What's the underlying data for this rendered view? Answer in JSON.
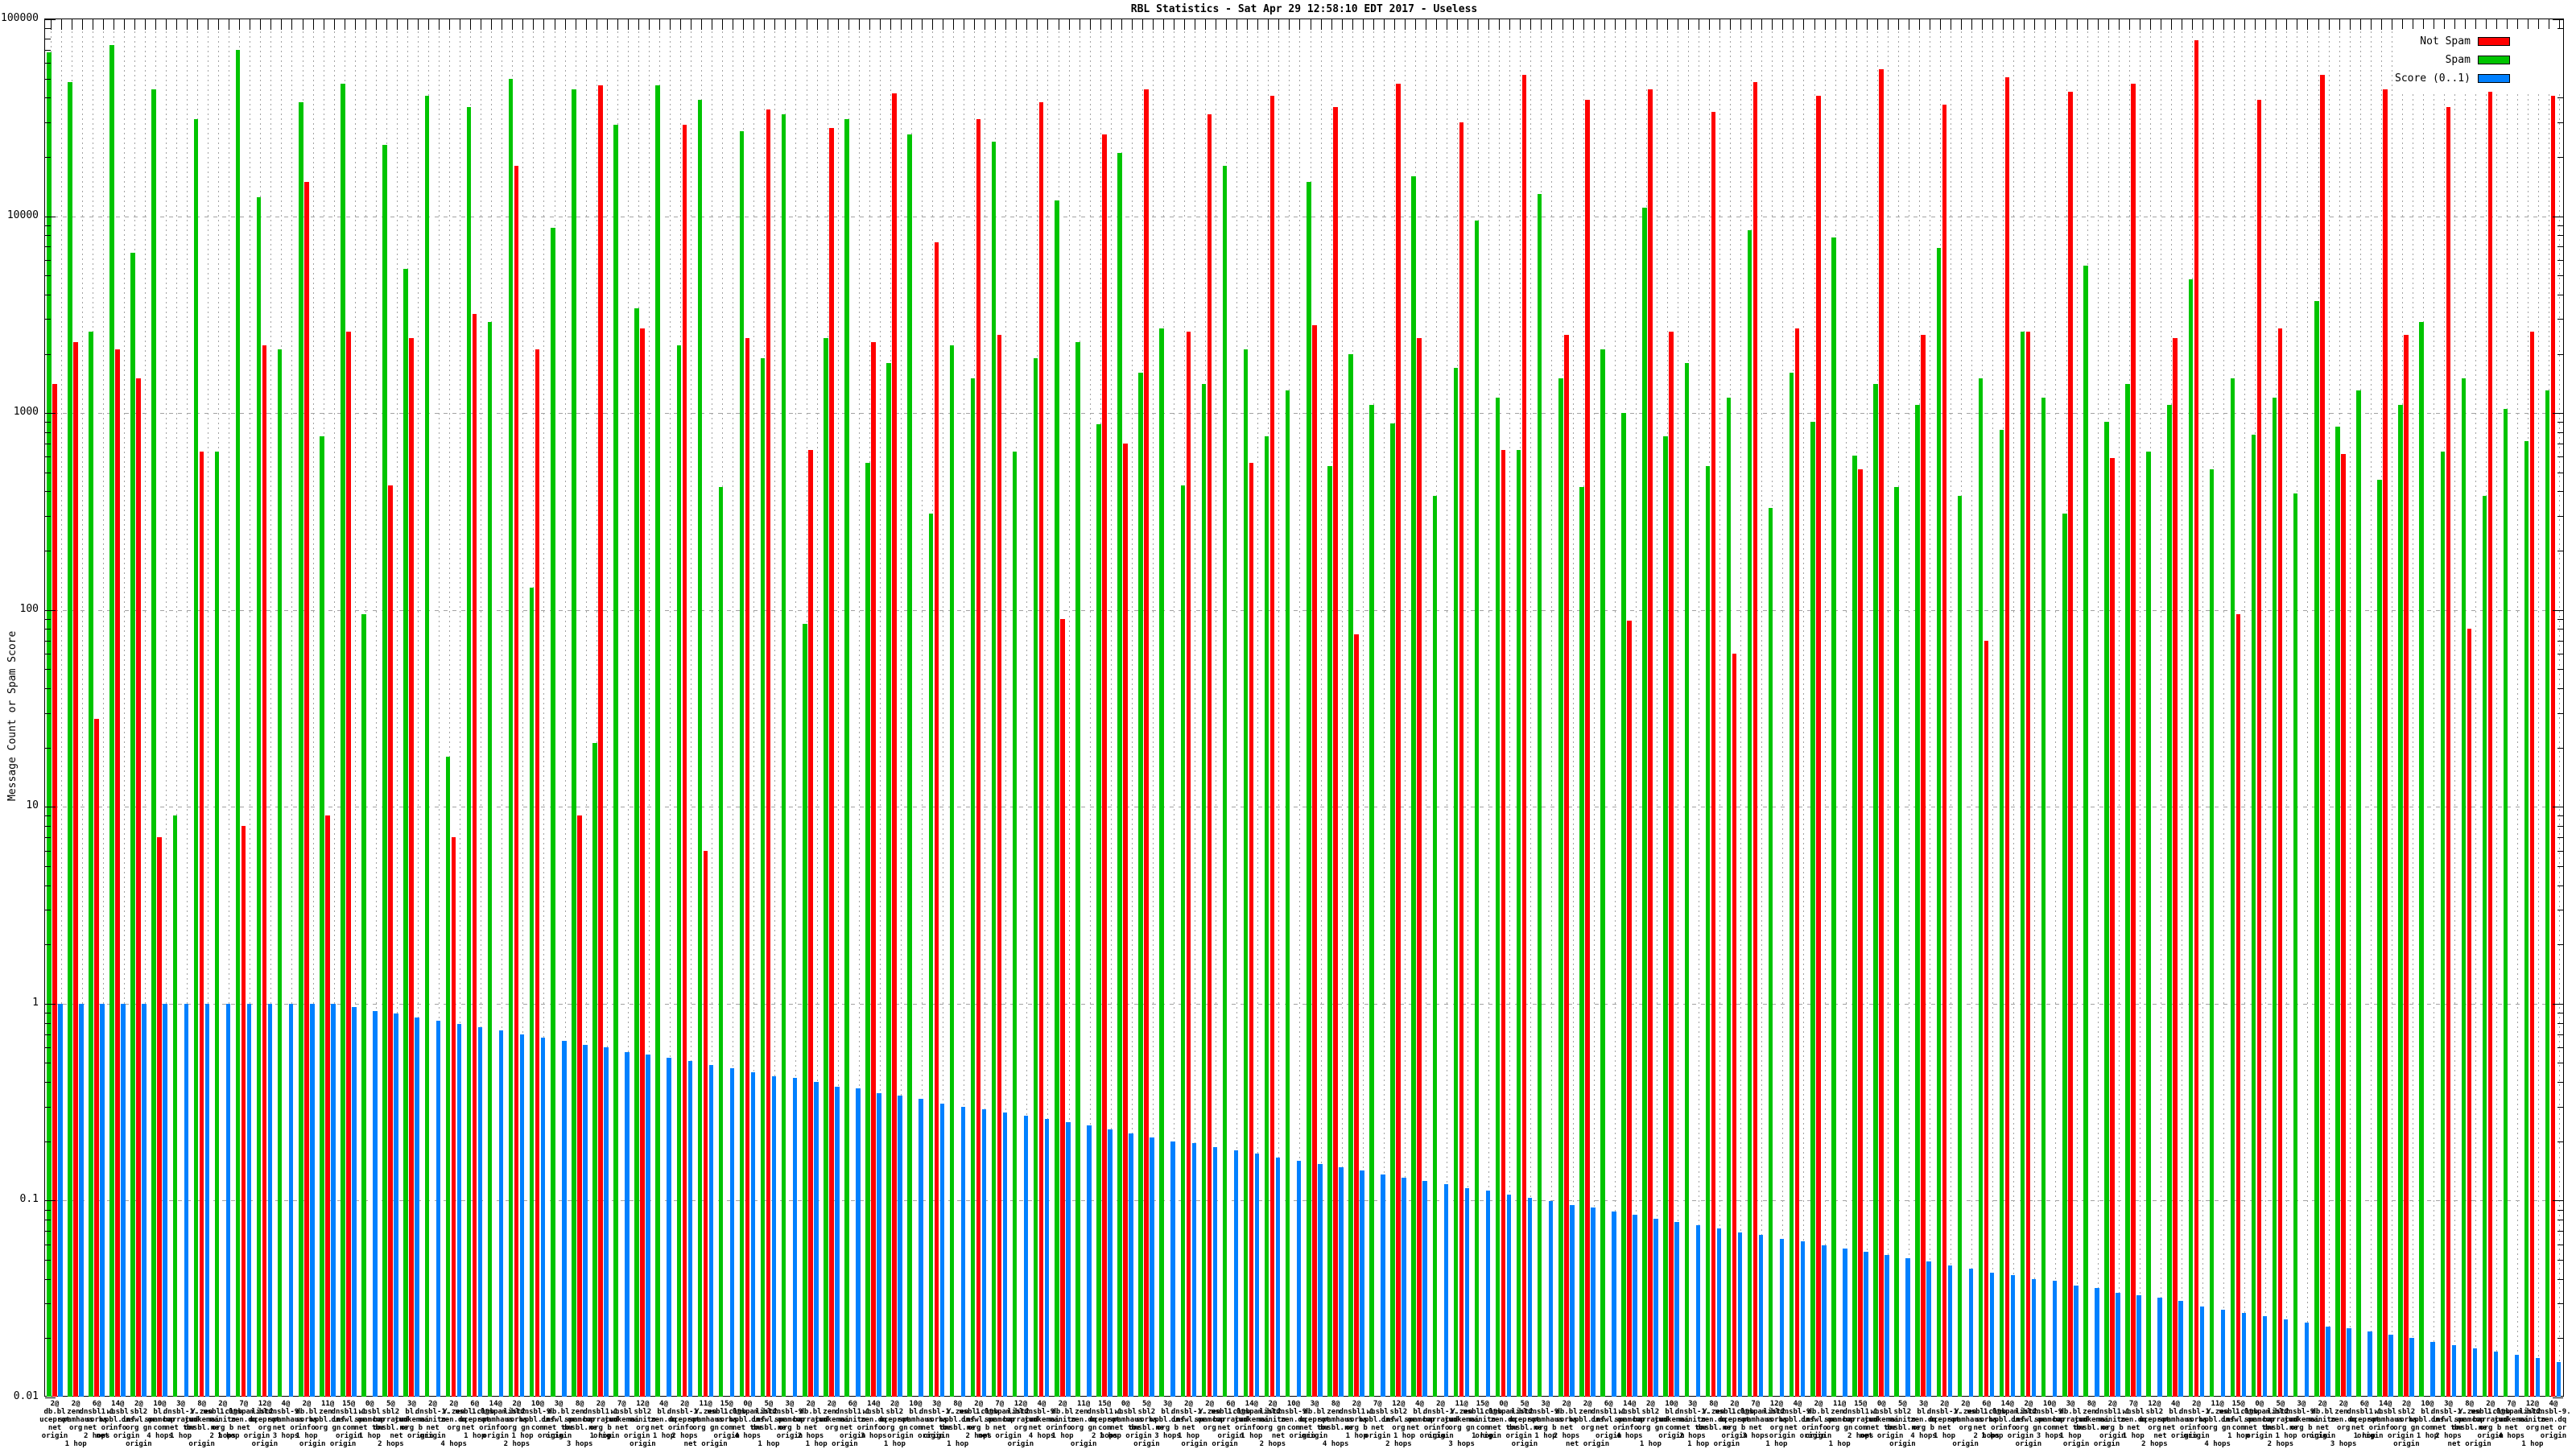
{
  "page": {
    "title": "RBL Statistics - Sat Apr 29 12:58:10 EDT 2017 - Useless"
  },
  "chart_data": {
    "type": "bar",
    "title": "RBL Statistics - Sat Apr 29 12:58:10 EDT 2017 - Useless",
    "ylabel": "Message Count or Spam Score",
    "xlabel": "",
    "y_scale": "log",
    "ylim": [
      0.01,
      100000
    ],
    "y_tick_labels": [
      "100000",
      "10000",
      "1000",
      "100",
      "10",
      "1",
      "0.1",
      "0.01"
    ],
    "grid": true,
    "legend_position": "top-right",
    "legend": [
      {
        "name": "Not Spam",
        "color": "#ff0000"
      },
      {
        "name": "Spam",
        "color": "#00c400"
      },
      {
        "name": "Score (0..1)",
        "color": "#0080ff"
      }
    ],
    "series": [
      {
        "name": "Not Spam",
        "color": "#ff0000",
        "values": [
          1400,
          2300,
          28,
          2100,
          1500,
          7,
          0,
          640,
          0,
          8,
          2200,
          0,
          15000,
          9,
          2600,
          0,
          430,
          2400,
          0,
          7,
          3200,
          0,
          18000,
          2100,
          0,
          9,
          46000,
          0,
          2700,
          0,
          29000,
          6,
          0,
          2400,
          35000,
          0,
          650,
          28000,
          0,
          2300,
          42000,
          0,
          7400,
          0,
          31000,
          2500,
          0,
          38000,
          90,
          0,
          26000,
          700,
          44000,
          0,
          2600,
          33000,
          0,
          560,
          41000,
          0,
          2800,
          36000,
          75,
          0,
          47000,
          2400,
          0,
          30000,
          0,
          650,
          52000,
          0,
          2500,
          39000,
          0,
          88,
          44000,
          2600,
          0,
          34000,
          60,
          48000,
          0,
          2700,
          41000,
          0,
          520,
          56000,
          0,
          2500,
          37000,
          0,
          70,
          51000,
          2600,
          0,
          43000,
          0,
          590,
          47000,
          0,
          2400,
          78000,
          0,
          95,
          39000,
          2700,
          0,
          52000,
          620,
          0,
          44000,
          2500,
          0,
          36000,
          80,
          76000,
          0,
          2600,
          41000
        ]
      },
      {
        "name": "Spam",
        "color": "#00c400",
        "values": [
          68000,
          48000,
          2600,
          74000,
          6500,
          44000,
          9,
          31000,
          640,
          70000,
          12500,
          2100,
          38000,
          760,
          47000,
          95,
          23000,
          5400,
          41000,
          18,
          36000,
          2900,
          50000,
          130,
          8700,
          44000,
          21,
          29000,
          3400,
          46000,
          2200,
          39000,
          420,
          27000,
          1900,
          33000,
          85,
          2400,
          31000,
          560,
          1800,
          26000,
          310,
          2200,
          1500,
          24000,
          640,
          1900,
          12000,
          2300,
          880,
          21000,
          1600,
          2700,
          430,
          1400,
          18000,
          2100,
          760,
          1300,
          15000,
          540,
          2000,
          1100,
          890,
          16000,
          380,
          1700,
          9500,
          1200,
          650,
          13000,
          1500,
          420,
          2100,
          1000,
          11000,
          760,
          1800,
          540,
          1200,
          8500,
          330,
          1600,
          900,
          7800,
          610,
          1400,
          420,
          1100,
          6900,
          380,
          1500,
          820,
          2600,
          1200,
          310,
          5600,
          900,
          1400,
          640,
          1100,
          4800,
          520,
          1500,
          780,
          1200,
          390,
          3700,
          850,
          1300,
          460,
          1100,
          2900,
          640,
          1500,
          380,
          1050,
          720,
          1300
        ]
      },
      {
        "name": "Score (0..1)",
        "color": "#0080ff",
        "values": [
          1,
          1,
          1,
          1,
          1,
          1,
          1,
          1,
          1,
          1,
          1,
          1,
          1,
          1,
          0.96,
          0.92,
          0.89,
          0.85,
          0.82,
          0.79,
          0.76,
          0.73,
          0.7,
          0.67,
          0.65,
          0.62,
          0.6,
          0.57,
          0.55,
          0.53,
          0.51,
          0.49,
          0.47,
          0.45,
          0.43,
          0.42,
          0.4,
          0.38,
          0.37,
          0.35,
          0.34,
          0.33,
          0.31,
          0.3,
          0.29,
          0.28,
          0.27,
          0.26,
          0.25,
          0.24,
          0.23,
          0.22,
          0.21,
          0.2,
          0.195,
          0.187,
          0.18,
          0.173,
          0.166,
          0.16,
          0.154,
          0.148,
          0.142,
          0.136,
          0.131,
          0.126,
          0.121,
          0.116,
          0.112,
          0.107,
          0.103,
          0.099,
          0.095,
          0.092,
          0.088,
          0.085,
          0.081,
          0.078,
          0.075,
          0.072,
          0.069,
          0.067,
          0.064,
          0.062,
          0.059,
          0.057,
          0.055,
          0.053,
          0.051,
          0.049,
          0.047,
          0.045,
          0.043,
          0.042,
          0.04,
          0.039,
          0.037,
          0.036,
          0.034,
          0.033,
          0.032,
          0.031,
          0.029,
          0.028,
          0.027,
          0.026,
          0.025,
          0.024,
          0.023,
          0.0225,
          0.0216,
          0.0208,
          0.02,
          0.0192,
          0.0185,
          0.0178,
          0.0171,
          0.0165,
          0.0158,
          0.0152
        ]
      }
    ],
    "x_tick_label_fragments": {
      "counts": [
        "2@",
        "2@",
        "6@",
        "14@",
        "2@",
        "10@",
        "3@",
        "8@",
        "2@",
        "7@",
        "12@",
        "4@",
        "2@",
        "11@",
        "15@",
        "0@",
        "5@",
        "3@"
      ],
      "rbl_row1": [
        "db.bl",
        "zen.",
        "dnsbl1.1",
        "wnsbl",
        "sbl2",
        "bl.",
        "dnsbl-1.",
        "Y.zen",
        "usbl.club",
        "1.0@spam.bl",
        "list2.",
        "dnsbl-9."
      ],
      "rbl_row2": [
        "uceprot",
        "spamhaus",
        "sorbs",
        "wpbl.inf",
        "dnswl.or",
        "spamcop",
        "barracud",
        "junkemai",
        "manitu",
        "zen.dq"
      ],
      "rbl_row3": [
        "net",
        "org",
        "net or",
        "info",
        "org gn",
        "com",
        "net tor",
        "dnsbl.ne",
        "org b"
      ],
      "hops": [
        "origin",
        "1 hop",
        "2 hops",
        "net origin",
        "origin",
        "4 hops",
        "1 hop",
        "origin",
        "2 hops",
        "1 hop origin",
        "origin",
        "3 hops",
        "1 hop",
        "origin origin"
      ]
    }
  }
}
